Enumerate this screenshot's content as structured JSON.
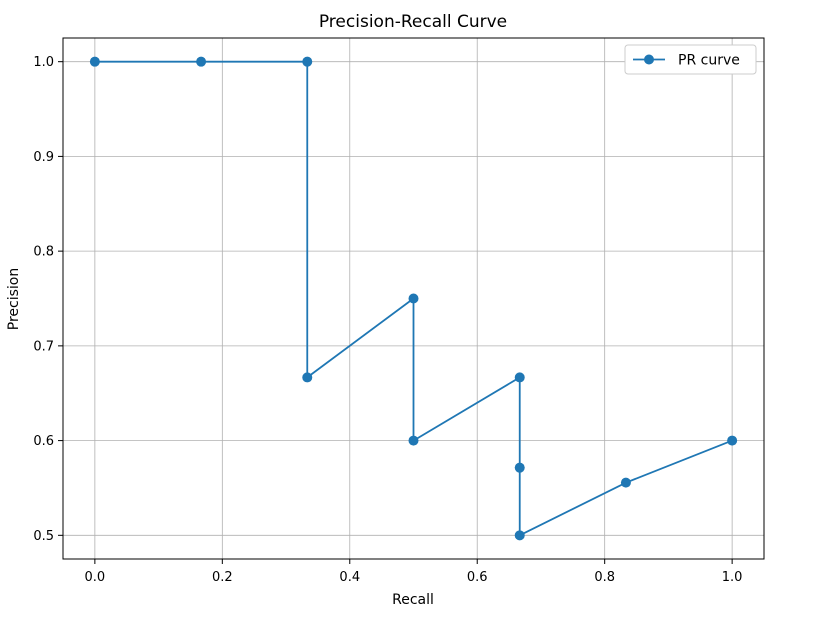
{
  "chart_data": {
    "type": "line",
    "title": "Precision-Recall Curve",
    "xlabel": "Recall",
    "ylabel": "Precision",
    "xlim": [
      -0.05,
      1.05
    ],
    "ylim": [
      0.475,
      1.025
    ],
    "xticks": [
      0.0,
      0.2,
      0.4,
      0.6,
      0.8,
      1.0
    ],
    "xtick_labels": [
      "0.0",
      "0.2",
      "0.4",
      "0.6",
      "0.8",
      "1.0"
    ],
    "yticks": [
      0.5,
      0.6,
      0.7,
      0.8,
      0.9,
      1.0
    ],
    "ytick_labels": [
      "0.5",
      "0.6",
      "0.7",
      "0.8",
      "0.9",
      "1.0"
    ],
    "grid": true,
    "legend_position": "top-right",
    "series": [
      {
        "name": "PR curve",
        "color": "#1f77b4",
        "marker": "circle",
        "x": [
          0.0,
          0.1667,
          0.3333,
          0.3333,
          0.5,
          0.5,
          0.6667,
          0.6667,
          0.6667,
          0.8333,
          1.0
        ],
        "y": [
          1.0,
          1.0,
          1.0,
          0.6667,
          0.75,
          0.6,
          0.6667,
          0.5714,
          0.5,
          0.5556,
          0.6
        ]
      }
    ]
  }
}
